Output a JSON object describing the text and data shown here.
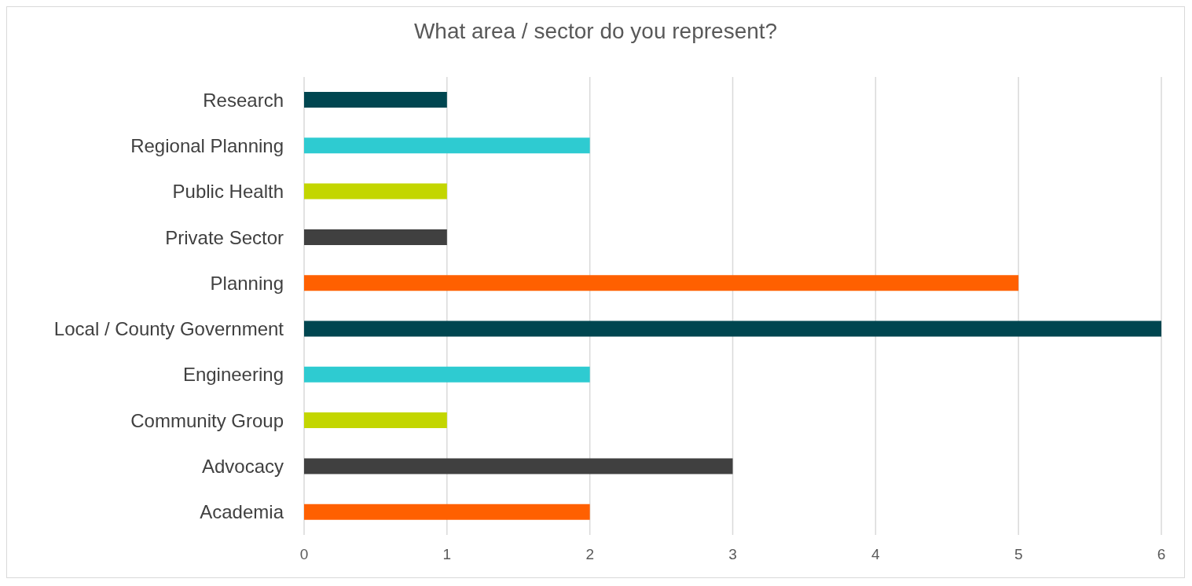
{
  "chart_data": {
    "type": "bar",
    "orientation": "horizontal",
    "title": "What area / sector do you represent?",
    "categories": [
      "Research",
      "Regional Planning",
      "Public Health",
      "Private Sector",
      "Planning",
      "Local / County Government",
      "Engineering",
      "Community Group",
      "Advocacy",
      "Academia"
    ],
    "values": [
      1,
      2,
      1,
      1,
      5,
      6,
      2,
      1,
      3,
      2
    ],
    "colors": [
      "#004650",
      "#2ecbd1",
      "#c3d600",
      "#404040",
      "#ff6000",
      "#004650",
      "#2ecbd1",
      "#c3d600",
      "#404040",
      "#ff6000"
    ],
    "xlim": [
      0,
      6
    ],
    "xticks": [
      0,
      1,
      2,
      3,
      4,
      5,
      6
    ],
    "grid": "x"
  }
}
